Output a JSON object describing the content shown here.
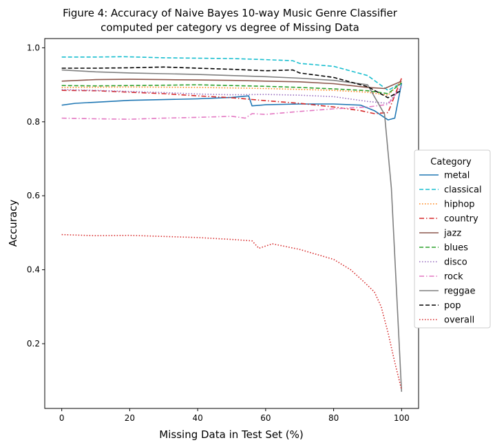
{
  "chart_data": {
    "type": "line",
    "title_line1": "Figure 4: Accuracy of Naive Bayes 10-way Music Genre Classifier",
    "title_line2": "computed per category vs degree of Missing Data",
    "xlabel": "Missing Data in Test Set (%)",
    "ylabel": "Accuracy",
    "xlim": [
      -5,
      105
    ],
    "ylim": [
      0.025,
      1.025
    ],
    "xticks": [
      0,
      20,
      40,
      60,
      80,
      100
    ],
    "yticks": [
      0.2,
      0.4,
      0.6,
      0.8,
      1.0
    ],
    "ytick_labels": [
      "0.2",
      "0.4",
      "0.6",
      "0.8",
      "1.0"
    ],
    "legend": {
      "title": "Category",
      "placement": "right"
    },
    "series": [
      {
        "name": "metal",
        "color": "#1f77b4",
        "dash": "solid",
        "x": [
          0,
          4,
          10,
          20,
          30,
          40,
          50,
          55,
          56,
          60,
          70,
          80,
          88,
          92,
          96,
          98,
          100
        ],
        "y": [
          0.845,
          0.85,
          0.853,
          0.858,
          0.86,
          0.862,
          0.866,
          0.87,
          0.843,
          0.846,
          0.848,
          0.848,
          0.845,
          0.83,
          0.805,
          0.81,
          0.905
        ]
      },
      {
        "name": "classical",
        "color": "#17becf",
        "dash": "dashed",
        "x": [
          0,
          10,
          18,
          30,
          40,
          50,
          60,
          68,
          70,
          80,
          90,
          96,
          100
        ],
        "y": [
          0.975,
          0.975,
          0.976,
          0.973,
          0.972,
          0.971,
          0.968,
          0.965,
          0.958,
          0.95,
          0.925,
          0.885,
          0.905
        ]
      },
      {
        "name": "hiphop",
        "color": "#ff7f0e",
        "dash": "dotted",
        "x": [
          0,
          20,
          40,
          60,
          80,
          90,
          96,
          100
        ],
        "y": [
          0.893,
          0.894,
          0.893,
          0.89,
          0.885,
          0.88,
          0.872,
          0.91
        ]
      },
      {
        "name": "country",
        "color": "#d62728",
        "dash": "dashdot",
        "x": [
          0,
          10,
          20,
          30,
          40,
          50,
          60,
          70,
          80,
          88,
          92,
          96,
          100
        ],
        "y": [
          0.885,
          0.884,
          0.88,
          0.876,
          0.87,
          0.865,
          0.857,
          0.85,
          0.84,
          0.83,
          0.822,
          0.825,
          0.918
        ]
      },
      {
        "name": "jazz",
        "color": "#8c564b",
        "dash": "solid",
        "x": [
          0,
          10,
          20,
          30,
          40,
          50,
          60,
          70,
          80,
          90,
          95,
          100
        ],
        "y": [
          0.91,
          0.914,
          0.915,
          0.914,
          0.913,
          0.912,
          0.91,
          0.908,
          0.903,
          0.893,
          0.89,
          0.91
        ]
      },
      {
        "name": "blues",
        "color": "#2ca02c",
        "dash": "dashed",
        "x": [
          0,
          10,
          20,
          30,
          40,
          50,
          60,
          70,
          80,
          90,
          96,
          100
        ],
        "y": [
          0.898,
          0.897,
          0.898,
          0.899,
          0.9,
          0.898,
          0.896,
          0.893,
          0.889,
          0.884,
          0.876,
          0.905
        ]
      },
      {
        "name": "disco",
        "color": "#9467bd",
        "dash": "dotted",
        "x": [
          0,
          10,
          20,
          30,
          40,
          50,
          60,
          70,
          80,
          90,
          96,
          100
        ],
        "y": [
          0.887,
          0.885,
          0.882,
          0.879,
          0.875,
          0.873,
          0.874,
          0.872,
          0.868,
          0.855,
          0.85,
          0.895
        ]
      },
      {
        "name": "rock",
        "color": "#e377c2",
        "dash": "dashdot",
        "x": [
          0,
          10,
          20,
          30,
          40,
          50,
          54,
          56,
          60,
          70,
          80,
          90,
          96,
          100
        ],
        "y": [
          0.81,
          0.808,
          0.807,
          0.81,
          0.812,
          0.815,
          0.81,
          0.822,
          0.82,
          0.828,
          0.835,
          0.84,
          0.847,
          0.895
        ]
      },
      {
        "name": "reggae",
        "color": "#7f7f7f",
        "dash": "solid",
        "x": [
          0,
          10,
          20,
          30,
          40,
          50,
          60,
          70,
          80,
          90,
          95,
          97,
          100
        ],
        "y": [
          0.94,
          0.935,
          0.932,
          0.93,
          0.928,
          0.925,
          0.922,
          0.918,
          0.912,
          0.9,
          0.82,
          0.62,
          0.07
        ]
      },
      {
        "name": "pop",
        "color": "#000000",
        "dash": "dashed",
        "x": [
          0,
          10,
          20,
          30,
          40,
          50,
          60,
          68,
          70,
          80,
          90,
          96,
          100
        ],
        "y": [
          0.945,
          0.945,
          0.946,
          0.948,
          0.945,
          0.942,
          0.938,
          0.94,
          0.932,
          0.92,
          0.895,
          0.865,
          0.885
        ]
      },
      {
        "name": "overall",
        "color": "#d62728",
        "dash": "dotted",
        "x": [
          0,
          10,
          20,
          30,
          40,
          50,
          56,
          58,
          62,
          70,
          80,
          85,
          88,
          92,
          94,
          96,
          98,
          100
        ],
        "y": [
          0.495,
          0.492,
          0.493,
          0.49,
          0.487,
          0.482,
          0.478,
          0.458,
          0.47,
          0.455,
          0.428,
          0.4,
          0.375,
          0.34,
          0.3,
          0.23,
          0.15,
          0.075
        ]
      }
    ]
  }
}
